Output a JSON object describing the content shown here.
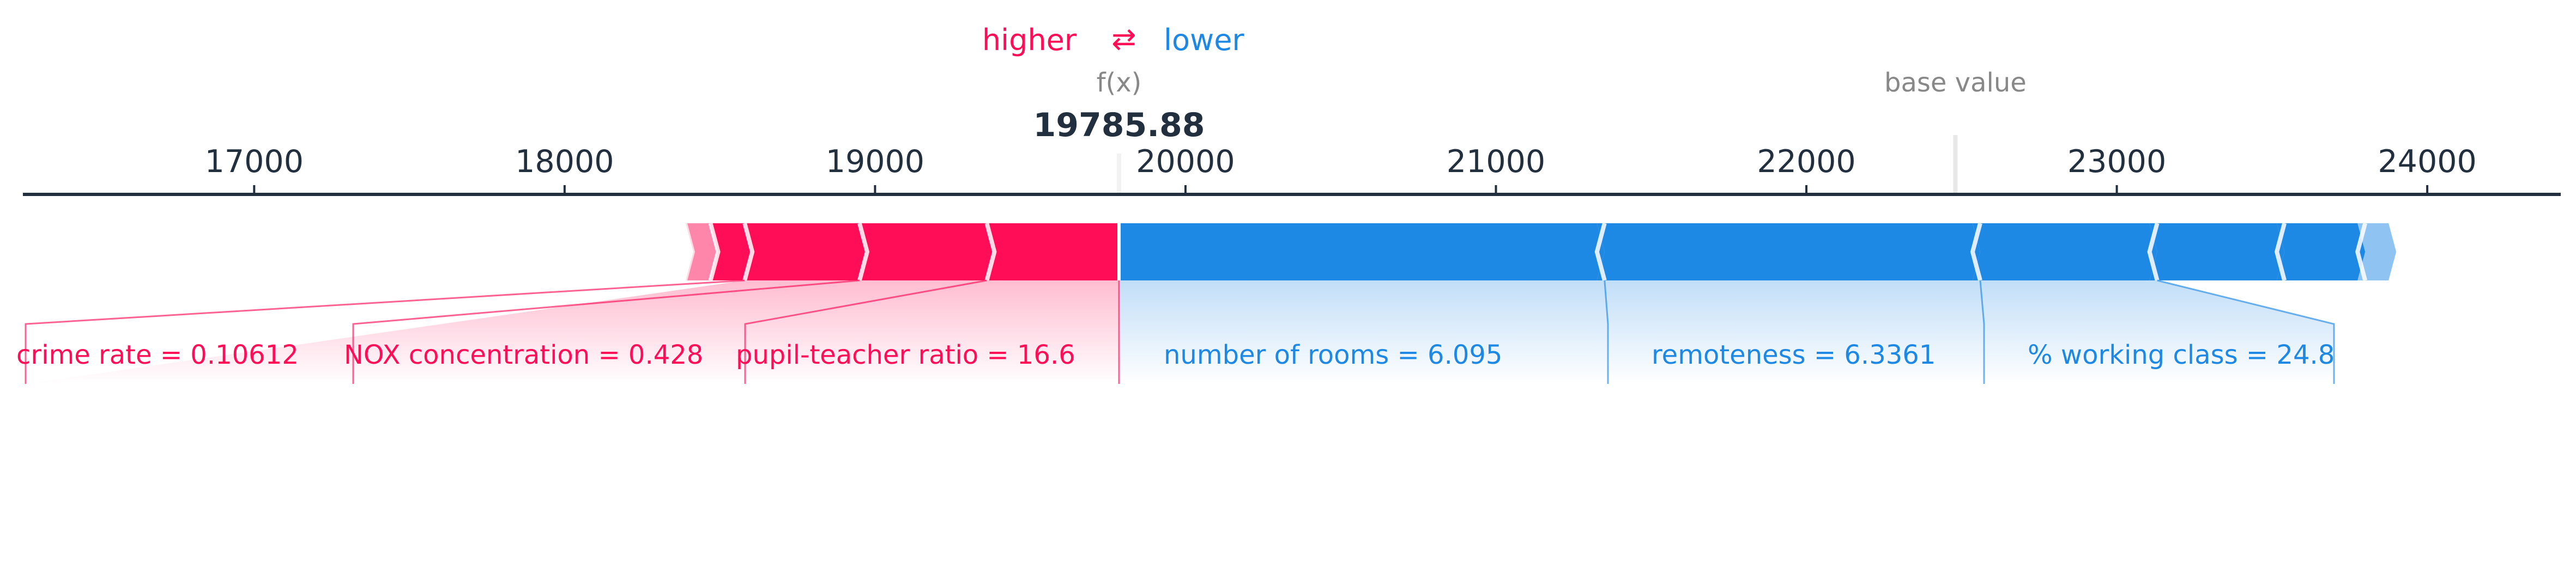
{
  "chart_data": {
    "type": "force",
    "legend": {
      "higher_label": "higher",
      "arrows": "⇄",
      "lower_label": "lower",
      "higher_color": "#ff0d57",
      "lower_color": "#1e88e5"
    },
    "fx_label": "f(x)",
    "fx_value": 19785.88,
    "fx_text": "19785.88",
    "base_label": "base value",
    "base_value": 22480,
    "x_ticks": [
      17000,
      18000,
      19000,
      20000,
      21000,
      22000,
      23000,
      24000
    ],
    "x_tick_labels": [
      "17000",
      "18000",
      "19000",
      "20000",
      "21000",
      "22000",
      "23000",
      "24000"
    ],
    "xlim": [
      16255,
      24430
    ],
    "positive_features": [
      {
        "label": "pupil-teacher ratio = 16.6",
        "start": 19360,
        "end": 19785.88
      },
      {
        "label": "NOX concentration = 0.428",
        "start": 18950,
        "end": 19360
      },
      {
        "label": "crime rate = 0.10612",
        "start": 18580,
        "end": 18950
      },
      {
        "label": "",
        "start": 18470,
        "end": 18580
      },
      {
        "label": "",
        "start": 18390,
        "end": 18470
      }
    ],
    "negative_features": [
      {
        "label": "number of rooms = 6.095",
        "start": 19785.88,
        "end": 21350
      },
      {
        "label": "remoteness = 6.3361",
        "start": 21350,
        "end": 22560
      },
      {
        "label": "% working class = 24.8",
        "start": 22560,
        "end": 23130
      },
      {
        "label": "",
        "start": 23130,
        "end": 23540
      },
      {
        "label": "",
        "start": 23540,
        "end": 23800
      },
      {
        "label": "",
        "start": 23800,
        "end": 23900
      }
    ]
  }
}
